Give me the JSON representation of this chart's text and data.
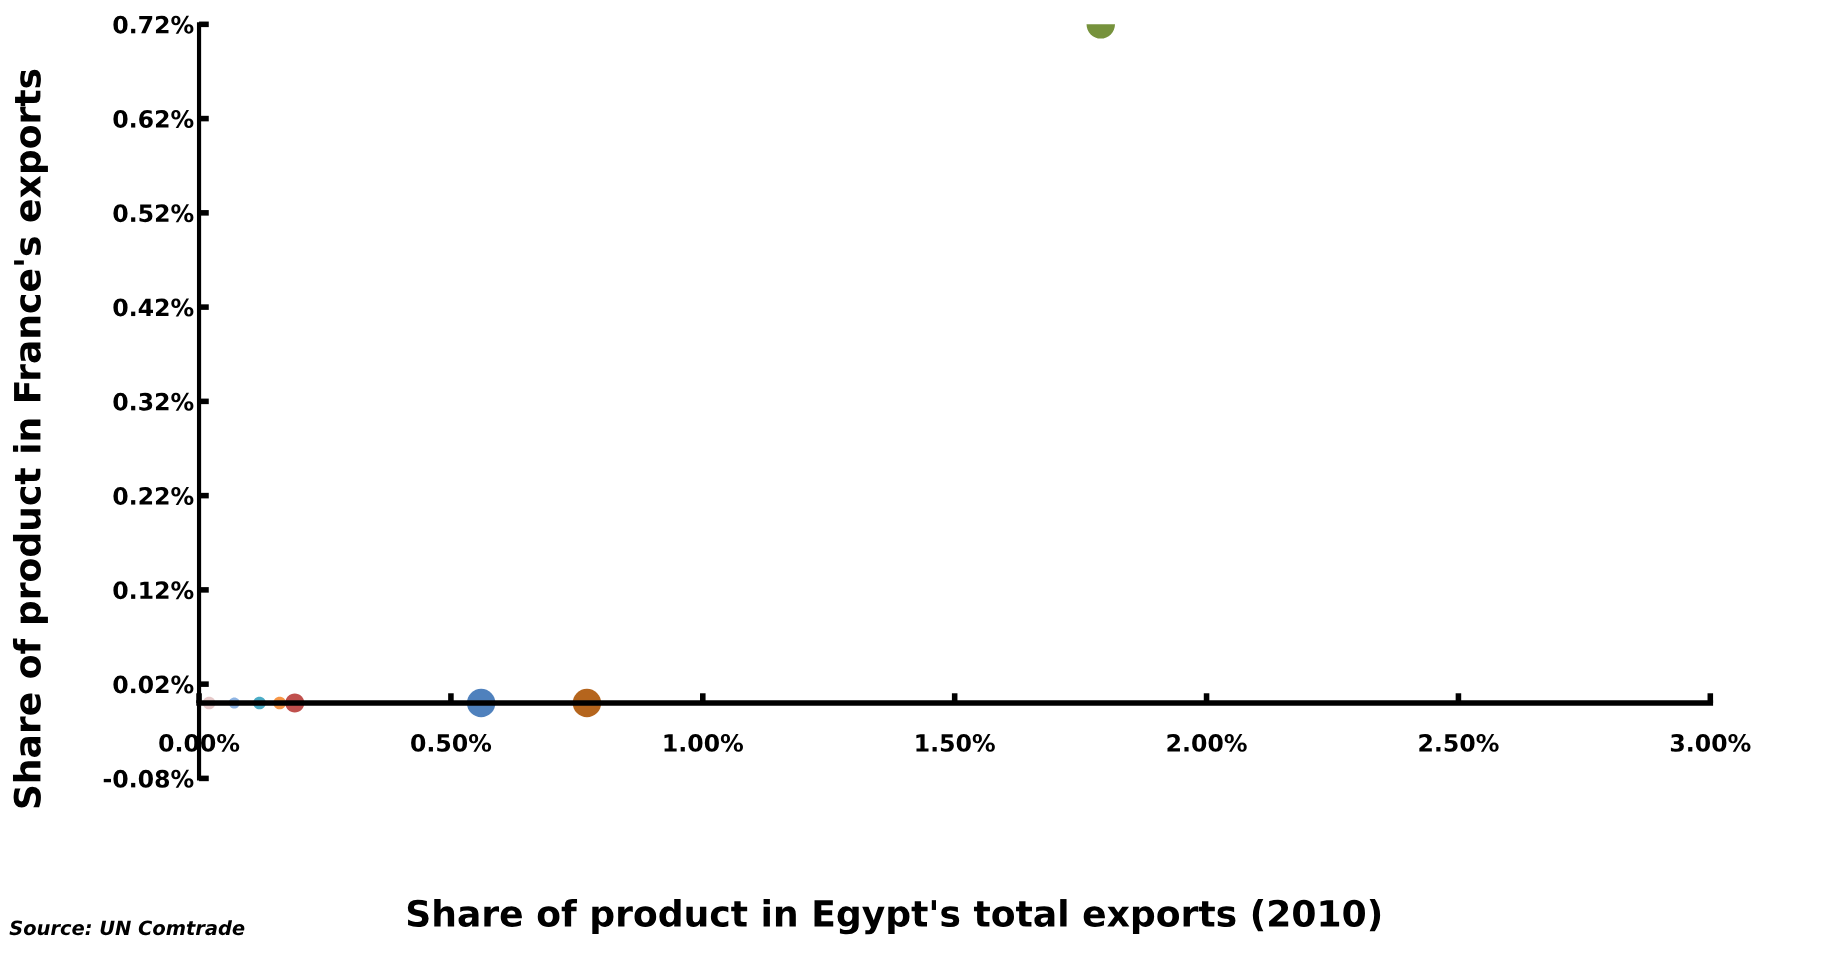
{
  "chart_data": {
    "type": "bubble",
    "xlabel": "Share of product in Egypt's total exports (2010)",
    "ylabel": "Share of product in France's exports",
    "annotations": [
      "Source: UN Comtrade"
    ],
    "x": [
      0.02,
      0.07,
      0.12,
      0.16,
      0.19,
      0.56,
      0.77,
      1.79
    ],
    "values": [
      0,
      0,
      0,
      0,
      0,
      0,
      0,
      0.72
    ],
    "sizes": [
      0.2,
      0.15,
      0.2,
      0.2,
      0.45,
      1,
      1,
      1
    ],
    "colors": [
      "#e6c9c9",
      "#8eb4e3",
      "#4bacc6",
      "#f79646",
      "#c0504d",
      "#4f81bd",
      "#b5651d",
      "#76923c"
    ],
    "xlim": [
      0,
      3
    ],
    "xticks": [
      {
        "value": 0,
        "label": "0.00%"
      },
      {
        "value": 0.5,
        "label": "0.50%"
      },
      {
        "value": 1,
        "label": "1.00%"
      },
      {
        "value": 1.5,
        "label": "1.50%"
      },
      {
        "value": 2,
        "label": "2.00%"
      },
      {
        "value": 2.5,
        "label": "2.50%"
      },
      {
        "value": 3,
        "label": "3.00%"
      }
    ],
    "ylim": [
      -0.08,
      0.72
    ],
    "yticks": [
      {
        "value": -0.08,
        "label": "-0.08%"
      },
      {
        "value": 0.02,
        "label": "0.02%"
      },
      {
        "value": 0.12,
        "label": "0.12%"
      },
      {
        "value": 0.22,
        "label": "0.22%"
      },
      {
        "value": 0.32,
        "label": "0.32%"
      },
      {
        "value": 0.42,
        "label": "0.42%"
      },
      {
        "value": 0.52,
        "label": "0.52%"
      },
      {
        "value": 0.62,
        "label": "0.62%"
      },
      {
        "value": 0.72,
        "label": "0.72%"
      }
    ],
    "grid": false,
    "legend": false
  }
}
